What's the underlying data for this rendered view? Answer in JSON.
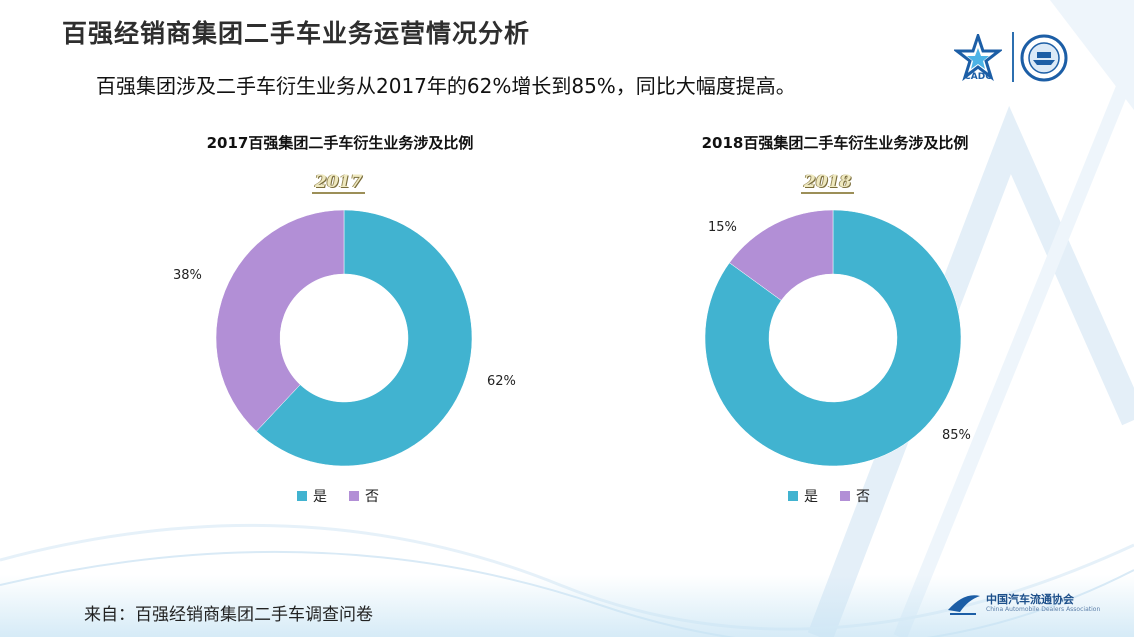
{
  "page_title": "百强经销商集团二手车业务运营情况分析",
  "subtitle": "百强集团涉及二手车衍生业务从2017年的62%增长到85%，同比大幅度提高。",
  "logos": {
    "star_text": "CADC"
  },
  "colors": {
    "yes": "#41b3d0",
    "no": "#b28fd6"
  },
  "chart_data": [
    {
      "type": "pie",
      "title": "2017百强集团二手车衍生业务涉及比例",
      "year_label": "2017",
      "categories": [
        "是",
        "否"
      ],
      "values": [
        62,
        38
      ],
      "value_labels": [
        "62%",
        "38%"
      ],
      "legend": [
        "是",
        "否"
      ]
    },
    {
      "type": "pie",
      "title": "2018百强集团二手车衍生业务涉及比例",
      "year_label": "2018",
      "categories": [
        "是",
        "否"
      ],
      "values": [
        85,
        15
      ],
      "value_labels": [
        "85%",
        "15%"
      ],
      "legend": [
        "是",
        "否"
      ]
    }
  ],
  "source": "来自：百强经销商集团二手车调查问卷",
  "footer": {
    "org_cn": "中国汽车流通协会",
    "org_en": "China Automobile Dealers Association"
  }
}
